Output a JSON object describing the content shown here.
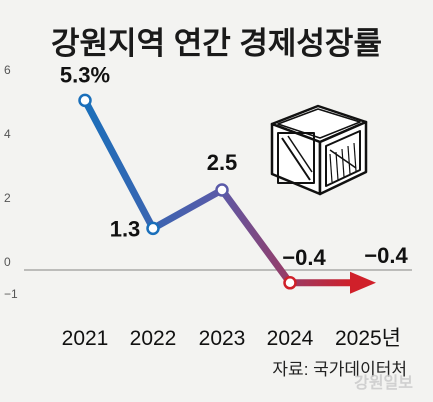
{
  "title": "강원지역 연간 경제성장률",
  "source": "자료: 국가데이터처",
  "watermark": "강원일보",
  "chart_data": {
    "type": "line",
    "title": "강원지역 연간 경제성장률",
    "categories": [
      "2021",
      "2022",
      "2023",
      "2024",
      "2025년"
    ],
    "values": [
      5.3,
      1.3,
      2.5,
      -0.4,
      -0.4
    ],
    "data_labels": [
      "5.3%",
      "1.3",
      "2.5",
      "−0.4",
      "−0.4"
    ],
    "y_ticks": [
      "6",
      "4",
      "2",
      "0",
      "−1"
    ],
    "ylim": [
      -1,
      6
    ],
    "grid": false,
    "colors": {
      "start": "#1a6fba",
      "mid": "#5a5aa8",
      "end": "#d0202a",
      "zero_line": "#9a9a9a"
    }
  },
  "icon": "wooden-crate-icon"
}
